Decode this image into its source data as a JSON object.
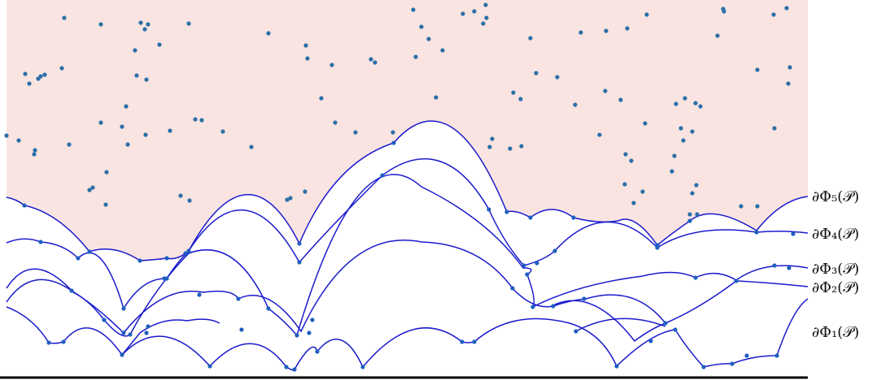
{
  "colors": {
    "shaded_region": "#f9e4e1",
    "curve": "#1a1acc",
    "curve_point": "#1f5fbf",
    "cloud_point": "#2a6fa8",
    "baseline": "#000000"
  },
  "labels": [
    {
      "id": "phi5",
      "text": "∂Φ₅(𝒫)"
    },
    {
      "id": "phi4",
      "text": "∂Φ₄(𝒫)"
    },
    {
      "id": "phi3",
      "text": "∂Φ₃(𝒫)"
    },
    {
      "id": "phi2",
      "text": "∂Φ₂(𝒫)"
    },
    {
      "id": "phi1",
      "text": "∂Φ₁(𝒫)"
    }
  ]
}
